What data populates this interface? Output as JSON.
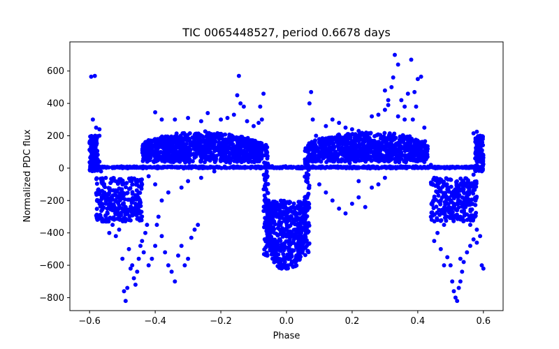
{
  "chart_data": {
    "type": "scatter",
    "title": "TIC 0065448527, period 0.6678 days",
    "xlabel": "Phase",
    "ylabel": "Normalized PDC flux",
    "xlim": [
      -0.66,
      0.66
    ],
    "ylim": [
      -880,
      780
    ],
    "xticks": [
      {
        "value": -0.6,
        "label": "−0.6"
      },
      {
        "value": -0.4,
        "label": "−0.4"
      },
      {
        "value": -0.2,
        "label": "−0.2"
      },
      {
        "value": 0.0,
        "label": "0.0"
      },
      {
        "value": 0.2,
        "label": "0.2"
      },
      {
        "value": 0.4,
        "label": "0.4"
      },
      {
        "value": 0.6,
        "label": "0.6"
      }
    ],
    "yticks": [
      {
        "value": -800,
        "label": "−800"
      },
      {
        "value": -600,
        "label": "−600"
      },
      {
        "value": -400,
        "label": "−400"
      },
      {
        "value": -200,
        "label": "−200"
      },
      {
        "value": 0,
        "label": "0"
      },
      {
        "value": 200,
        "label": "200"
      },
      {
        "value": 400,
        "label": "400"
      },
      {
        "value": 600,
        "label": "600"
      }
    ],
    "grid": false,
    "marker_color": "#0000ff",
    "series": [
      {
        "name": "flux",
        "points": [
          [
            -0.595,
            565
          ],
          [
            -0.584,
            570
          ],
          [
            -0.59,
            300
          ],
          [
            -0.58,
            250
          ],
          [
            -0.57,
            240
          ],
          [
            -0.592,
            180
          ],
          [
            -0.585,
            130
          ],
          [
            -0.578,
            90
          ],
          [
            -0.57,
            40
          ],
          [
            -0.565,
            -20
          ],
          [
            -0.56,
            -80
          ],
          [
            -0.555,
            -150
          ],
          [
            -0.55,
            -220
          ],
          [
            -0.545,
            -280
          ],
          [
            -0.54,
            -310
          ],
          [
            -0.53,
            -260
          ],
          [
            -0.52,
            -200
          ],
          [
            -0.51,
            -300
          ],
          [
            -0.5,
            -250
          ],
          [
            -0.49,
            -240
          ],
          [
            -0.48,
            -320
          ],
          [
            -0.47,
            -280
          ],
          [
            -0.46,
            -220
          ],
          [
            -0.45,
            -150
          ],
          [
            -0.44,
            -100
          ],
          [
            -0.55,
            -330
          ],
          [
            -0.54,
            -400
          ],
          [
            -0.53,
            -350
          ],
          [
            -0.52,
            -420
          ],
          [
            -0.51,
            -380
          ],
          [
            -0.5,
            -560
          ],
          [
            -0.495,
            -760
          ],
          [
            -0.49,
            -820
          ],
          [
            -0.485,
            -740
          ],
          [
            -0.48,
            -500
          ],
          [
            -0.475,
            -620
          ],
          [
            -0.47,
            -600
          ],
          [
            -0.465,
            -680
          ],
          [
            -0.46,
            -720
          ],
          [
            -0.455,
            -640
          ],
          [
            -0.45,
            -560
          ],
          [
            -0.445,
            -480
          ],
          [
            -0.44,
            -450
          ],
          [
            -0.435,
            -520
          ],
          [
            -0.43,
            -400
          ],
          [
            -0.425,
            -350
          ],
          [
            -0.42,
            -600
          ],
          [
            -0.41,
            -560
          ],
          [
            -0.4,
            -480
          ],
          [
            -0.395,
            -350
          ],
          [
            -0.39,
            -300
          ],
          [
            -0.38,
            -420
          ],
          [
            -0.37,
            -520
          ],
          [
            -0.36,
            -600
          ],
          [
            -0.35,
            -640
          ],
          [
            -0.34,
            -700
          ],
          [
            -0.33,
            -540
          ],
          [
            -0.32,
            -480
          ],
          [
            -0.31,
            -600
          ],
          [
            -0.3,
            -560
          ],
          [
            -0.29,
            -430
          ],
          [
            -0.28,
            -380
          ],
          [
            -0.27,
            -350
          ],
          [
            -0.4,
            345
          ],
          [
            -0.38,
            300
          ],
          [
            -0.34,
            300
          ],
          [
            -0.3,
            310
          ],
          [
            -0.26,
            290
          ],
          [
            -0.24,
            340
          ],
          [
            -0.2,
            300
          ],
          [
            -0.18,
            310
          ],
          [
            -0.16,
            330
          ],
          [
            -0.15,
            450
          ],
          [
            -0.145,
            570
          ],
          [
            -0.14,
            400
          ],
          [
            -0.13,
            380
          ],
          [
            -0.12,
            290
          ],
          [
            -0.1,
            260
          ],
          [
            -0.08,
            380
          ],
          [
            -0.07,
            460
          ],
          [
            -0.075,
            300
          ],
          [
            -0.085,
            280
          ],
          [
            -0.38,
            -200
          ],
          [
            -0.36,
            -150
          ],
          [
            -0.32,
            -120
          ],
          [
            -0.3,
            -80
          ],
          [
            -0.26,
            -60
          ],
          [
            -0.22,
            -20
          ],
          [
            -0.4,
            -100
          ],
          [
            -0.42,
            -50
          ],
          [
            -0.062,
            100
          ],
          [
            -0.058,
            -50
          ],
          [
            -0.055,
            -200
          ],
          [
            -0.05,
            -350
          ],
          [
            -0.045,
            -450
          ],
          [
            -0.04,
            -500
          ],
          [
            -0.035,
            -540
          ],
          [
            -0.03,
            -560
          ],
          [
            -0.025,
            -580
          ],
          [
            -0.02,
            -600
          ],
          [
            -0.015,
            -620
          ],
          [
            -0.01,
            -600
          ],
          [
            -0.005,
            -580
          ],
          [
            0.0,
            -620
          ],
          [
            0.005,
            -600
          ],
          [
            0.01,
            -560
          ],
          [
            0.015,
            -590
          ],
          [
            0.02,
            -610
          ],
          [
            0.025,
            -570
          ],
          [
            0.03,
            -540
          ],
          [
            0.035,
            -500
          ],
          [
            0.04,
            -460
          ],
          [
            0.045,
            -400
          ],
          [
            0.05,
            -320
          ],
          [
            0.055,
            -200
          ],
          [
            0.06,
            -80
          ],
          [
            0.065,
            60
          ],
          [
            -0.04,
            -240
          ],
          [
            -0.02,
            -230
          ],
          [
            0.0,
            -250
          ],
          [
            0.02,
            -240
          ],
          [
            0.04,
            -220
          ],
          [
            -0.03,
            -300
          ],
          [
            0.01,
            -320
          ],
          [
            0.03,
            -300
          ],
          [
            -0.01,
            -400
          ],
          [
            0.015,
            -420
          ],
          [
            0.07,
            400
          ],
          [
            0.075,
            470
          ],
          [
            0.08,
            300
          ],
          [
            0.09,
            200
          ],
          [
            0.1,
            180
          ],
          [
            0.12,
            260
          ],
          [
            0.14,
            300
          ],
          [
            0.16,
            280
          ],
          [
            0.18,
            250
          ],
          [
            0.2,
            240
          ],
          [
            0.22,
            230
          ],
          [
            0.1,
            -100
          ],
          [
            0.12,
            -150
          ],
          [
            0.14,
            -200
          ],
          [
            0.16,
            -250
          ],
          [
            0.18,
            -280
          ],
          [
            0.2,
            -220
          ],
          [
            0.22,
            -180
          ],
          [
            0.24,
            -240
          ],
          [
            0.26,
            -120
          ],
          [
            0.28,
            -100
          ],
          [
            0.3,
            -60
          ],
          [
            0.22,
            -80
          ],
          [
            0.26,
            320
          ],
          [
            0.28,
            330
          ],
          [
            0.3,
            360
          ],
          [
            0.31,
            420
          ],
          [
            0.32,
            500
          ],
          [
            0.325,
            560
          ],
          [
            0.33,
            700
          ],
          [
            0.34,
            640
          ],
          [
            0.3,
            480
          ],
          [
            0.31,
            390
          ],
          [
            0.35,
            420
          ],
          [
            0.36,
            380
          ],
          [
            0.37,
            460
          ],
          [
            0.38,
            670
          ],
          [
            0.39,
            470
          ],
          [
            0.4,
            550
          ],
          [
            0.41,
            565
          ],
          [
            0.395,
            380
          ],
          [
            0.385,
            300
          ],
          [
            0.36,
            300
          ],
          [
            0.34,
            320
          ],
          [
            0.42,
            250
          ],
          [
            0.43,
            120
          ],
          [
            0.44,
            20
          ],
          [
            0.45,
            -60
          ],
          [
            0.46,
            -150
          ],
          [
            0.47,
            -200
          ],
          [
            0.48,
            -250
          ],
          [
            0.49,
            -300
          ],
          [
            0.5,
            -280
          ],
          [
            0.51,
            -220
          ],
          [
            0.52,
            -260
          ],
          [
            0.53,
            -300
          ],
          [
            0.54,
            -240
          ],
          [
            0.55,
            -180
          ],
          [
            0.56,
            -100
          ],
          [
            0.57,
            -40
          ],
          [
            0.575,
            60
          ],
          [
            0.58,
            120
          ],
          [
            0.585,
            180
          ],
          [
            0.59,
            200
          ],
          [
            0.592,
            150
          ],
          [
            0.58,
            225
          ],
          [
            0.45,
            -450
          ],
          [
            0.46,
            -400
          ],
          [
            0.47,
            -500
          ],
          [
            0.48,
            -350
          ],
          [
            0.49,
            -550
          ],
          [
            0.5,
            -600
          ],
          [
            0.505,
            -700
          ],
          [
            0.51,
            -760
          ],
          [
            0.515,
            -800
          ],
          [
            0.52,
            -820
          ],
          [
            0.525,
            -740
          ],
          [
            0.53,
            -700
          ],
          [
            0.535,
            -640
          ],
          [
            0.54,
            -580
          ],
          [
            0.55,
            -520
          ],
          [
            0.56,
            -480
          ],
          [
            0.57,
            -440
          ],
          [
            0.58,
            -460
          ],
          [
            0.59,
            -420
          ],
          [
            0.595,
            -600
          ],
          [
            0.6,
            -620
          ],
          [
            0.48,
            -600
          ],
          [
            0.53,
            -560
          ],
          [
            0.56,
            -350
          ],
          [
            0.57,
            -300
          ],
          [
            0.58,
            -380
          ],
          [
            0.49,
            -130
          ],
          [
            0.52,
            -150
          ],
          [
            0.55,
            -200
          ],
          [
            0.44,
            -300
          ],
          [
            0.46,
            -320
          ],
          [
            0.57,
            215
          ],
          [
            -0.57,
            200
          ],
          [
            -0.58,
            150
          ],
          [
            -0.59,
            100
          ],
          [
            -0.595,
            50
          ]
        ]
      }
    ]
  }
}
